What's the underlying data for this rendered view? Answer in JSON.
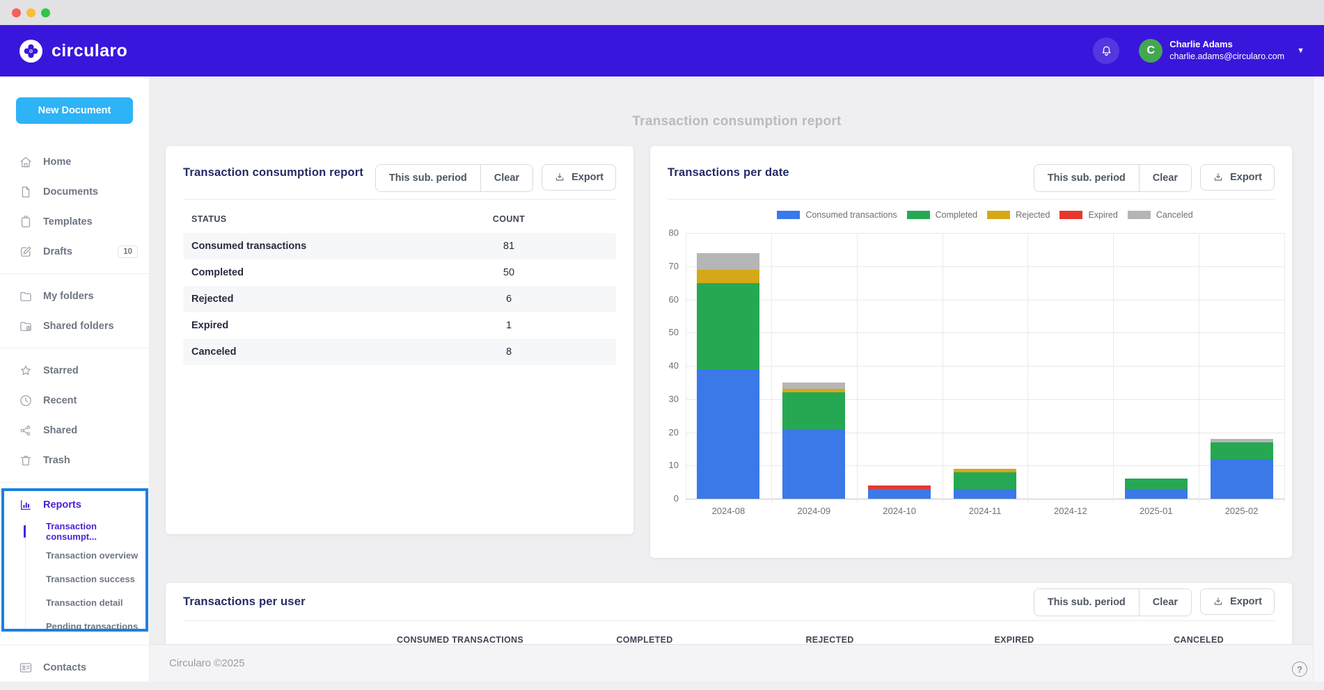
{
  "header": {
    "brand": "circularo",
    "user": {
      "name": "Charlie Adams",
      "email": "charlie.adams@circularo.com",
      "avatar_initial": "C"
    }
  },
  "sidebar": {
    "new_document_label": "New Document",
    "sections": [
      {
        "items": [
          {
            "icon": "home",
            "label": "Home"
          },
          {
            "icon": "document",
            "label": "Documents"
          },
          {
            "icon": "template",
            "label": "Templates"
          },
          {
            "icon": "drafts",
            "label": "Drafts",
            "badge": "10"
          }
        ]
      },
      {
        "items": [
          {
            "icon": "folder",
            "label": "My folders"
          },
          {
            "icon": "sharedfolder",
            "label": "Shared folders"
          }
        ]
      },
      {
        "items": [
          {
            "icon": "star",
            "label": "Starred"
          },
          {
            "icon": "clock",
            "label": "Recent"
          },
          {
            "icon": "share",
            "label": "Shared"
          },
          {
            "icon": "trash",
            "label": "Trash"
          }
        ]
      },
      {
        "items": [
          {
            "icon": "reports",
            "label": "Reports",
            "purple": true,
            "children": [
              {
                "label": "Transaction consumpt...",
                "active": true
              },
              {
                "label": "Transaction overview"
              },
              {
                "label": "Transaction success"
              },
              {
                "label": "Transaction detail"
              },
              {
                "label": "Pending transactions"
              }
            ]
          }
        ]
      },
      {
        "items": [
          {
            "icon": "contacts",
            "label": "Contacts"
          }
        ]
      }
    ]
  },
  "page": {
    "title": "Transaction consumption report"
  },
  "summary_card": {
    "title": "Transaction consumption report",
    "buttons": {
      "period": "This sub. period",
      "clear": "Clear",
      "export": "Export"
    },
    "table": {
      "headers": [
        "STATUS",
        "COUNT"
      ],
      "rows": [
        {
          "status": "Consumed transactions",
          "count": "81"
        },
        {
          "status": "Completed",
          "count": "50"
        },
        {
          "status": "Rejected",
          "count": "6"
        },
        {
          "status": "Expired",
          "count": "1"
        },
        {
          "status": "Canceled",
          "count": "8"
        }
      ]
    }
  },
  "chart_card": {
    "title": "Transactions per date",
    "buttons": {
      "period": "This sub. period",
      "clear": "Clear",
      "export": "Export"
    }
  },
  "chart_data": {
    "type": "bar",
    "stacked": true,
    "title": "Transactions per date",
    "categories": [
      "2024-08",
      "2024-09",
      "2024-10",
      "2024-11",
      "2024-12",
      "2025-01",
      "2025-02"
    ],
    "series": [
      {
        "name": "Consumed transactions",
        "color": "#3b79e8",
        "values": [
          39,
          21,
          3,
          3,
          0,
          3,
          12
        ]
      },
      {
        "name": "Completed",
        "color": "#26a853",
        "values": [
          26,
          11,
          0,
          5,
          0,
          3,
          5
        ]
      },
      {
        "name": "Rejected",
        "color": "#d5a819",
        "values": [
          4,
          1,
          0,
          1,
          0,
          0,
          0
        ]
      },
      {
        "name": "Expired",
        "color": "#e6382c",
        "values": [
          0,
          0,
          1,
          0,
          0,
          0,
          0
        ]
      },
      {
        "name": "Canceled",
        "color": "#b5b5b5",
        "values": [
          5,
          2,
          0,
          0,
          0,
          0,
          1
        ]
      }
    ],
    "ylim": [
      0,
      80
    ],
    "ytick_step": 10,
    "grid": true,
    "legend_position": "top"
  },
  "users_card": {
    "title": "Transactions per user",
    "buttons": {
      "period": "This sub. period",
      "clear": "Clear",
      "export": "Export"
    },
    "columns": [
      "CONSUMED TRANSACTIONS",
      "COMPLETED",
      "REJECTED",
      "EXPIRED",
      "CANCELED"
    ]
  },
  "footer": {
    "copyright": "Circularo ©2025",
    "help": "?"
  }
}
